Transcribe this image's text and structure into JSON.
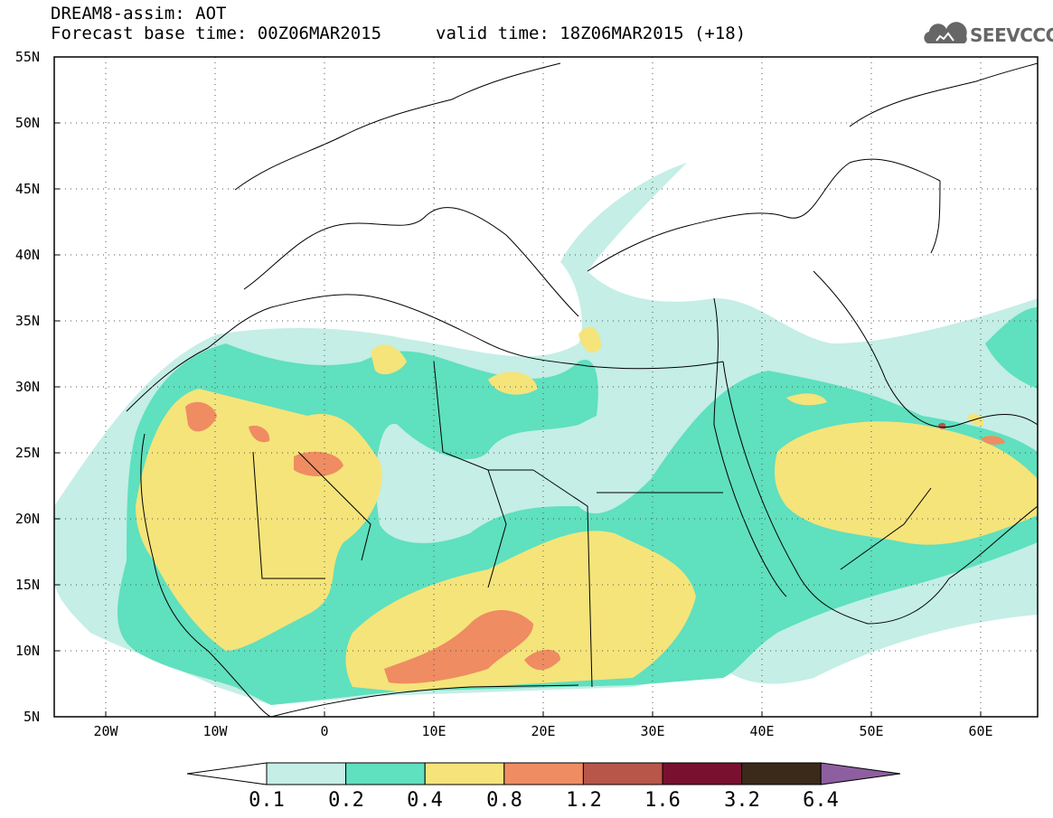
{
  "title": {
    "line1": "DREAM8-assim: AOT",
    "line2": "Forecast base time: 00Z06MAR2015",
    "valid": "valid time: 18Z06MAR2015 (+18)"
  },
  "logo": {
    "text": "SEEVCCC",
    "icon": "cloud-icon"
  },
  "map": {
    "lon_range": [
      -25,
      65
    ],
    "lat_range": [
      5,
      55
    ],
    "lat_labels": [
      "55N",
      "50N",
      "45N",
      "40N",
      "35N",
      "30N",
      "25N",
      "20N",
      "15N",
      "10N",
      "5N"
    ],
    "lon_labels": [
      "20W",
      "10W",
      "0",
      "10E",
      "20E",
      "30E",
      "40E",
      "50E",
      "60E"
    ],
    "grid": "dotted"
  },
  "legend": {
    "colors": [
      "#c4eee6",
      "#5fe0be",
      "#f5e47a",
      "#ef8c62",
      "#b8564a",
      "#7a1030",
      "#3b2a1a"
    ],
    "end_colors": [
      "#ffffff",
      "#8e5fa0"
    ],
    "labels": [
      "0.1",
      "0.2",
      "0.4",
      "0.8",
      "1.2",
      "1.6",
      "3.2",
      "6.4"
    ]
  }
}
